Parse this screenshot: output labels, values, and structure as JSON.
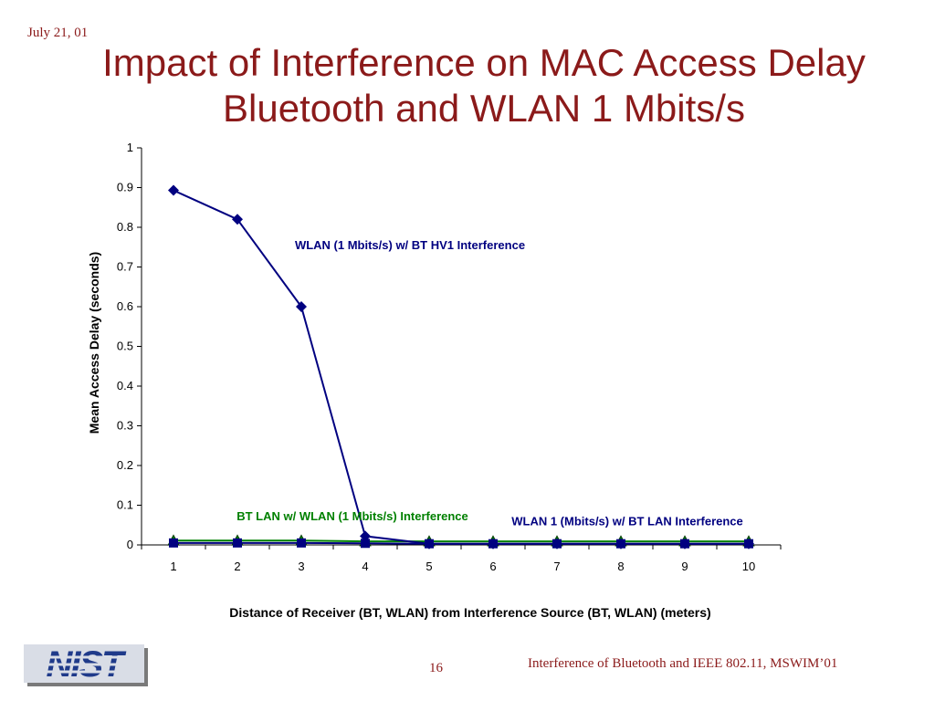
{
  "slide": {
    "date": "July 21, 01",
    "title_line1": "Impact of Interference on MAC Access Delay",
    "title_line2": "Bluetooth and WLAN 1 Mbits/s",
    "page_number": "16",
    "footer": "Interference of Bluetooth and IEEE 802.11, MSWIM’01",
    "logo_text": "NIST",
    "title_color": "#8b1a1a"
  },
  "chart_data": {
    "type": "line",
    "x": [
      1,
      2,
      3,
      4,
      5,
      6,
      7,
      8,
      9,
      10
    ],
    "xlabel": "Distance of Receiver (BT, WLAN) from Interference Source (BT, WLAN)  (meters)",
    "ylabel": "Mean Access Delay (seconds)",
    "ylim": [
      0,
      1
    ],
    "yticks": [
      "0",
      "0.1",
      "0.2",
      "0.3",
      "0.4",
      "0.5",
      "0.6",
      "0.7",
      "0.8",
      "0.9",
      "1"
    ],
    "grid": false,
    "series": [
      {
        "key": "wlan_hv1",
        "color": "#000080",
        "marker": "diamond",
        "values": [
          0.893,
          0.82,
          0.6,
          0.022,
          0.003,
          0.003,
          0.003,
          0.003,
          0.003,
          0.003
        ]
      },
      {
        "key": "wlan_lan",
        "color": "#000080",
        "marker": "square",
        "values": [
          0.005,
          0.005,
          0.005,
          0.004,
          0.003,
          0.003,
          0.003,
          0.003,
          0.003,
          0.003
        ]
      },
      {
        "key": "bt_lan",
        "color": "#008000",
        "marker": "triangle",
        "values": [
          0.011,
          0.011,
          0.011,
          0.009,
          0.009,
          0.009,
          0.009,
          0.009,
          0.009,
          0.009
        ]
      }
    ],
    "annotations": [
      {
        "text": "WLAN (1 Mbits/s) w/ BT HV1 Interference",
        "color": "#000080",
        "x": 4.7,
        "y": 0.745
      },
      {
        "text": "BT LAN w/ WLAN (1 Mbits/s) Interference",
        "color": "#008000",
        "x": 3.8,
        "y": 0.062
      },
      {
        "text": "WLAN 1 (Mbits/s) w/ BT LAN Interference",
        "color": "#000080",
        "x": 8.1,
        "y": 0.05
      }
    ]
  }
}
